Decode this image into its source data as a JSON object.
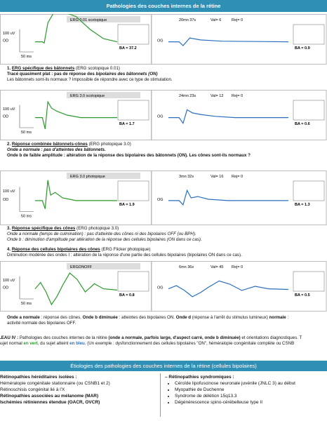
{
  "header": {
    "title": "Pathologies des couches internes de la rétine"
  },
  "panels": [
    {
      "title": "ERG 0.01 scotopique",
      "time": "20mn 37s",
      "val": "Val= 6",
      "rej": "Rej= 0",
      "amp": "100 uV",
      "dur": "50 ms",
      "eye_left": "OD",
      "eye_right": "OG",
      "ba": "BA = 37.2",
      "ba2": "BA = 0.9"
    },
    {
      "title": "ERG 3.0 scotopique",
      "time": "24mn 23s",
      "val": "Val= 12",
      "rej": "Rej= 0",
      "amp": "100 uV",
      "dur": "50 ms",
      "eye_left": "OD",
      "eye_right": "OG",
      "ba": "BA = 1.7",
      "ba2": "BA = 0.6"
    },
    {
      "title": "ERG 3.0 photopique",
      "time": "3mn 32s",
      "val": "Val= 16",
      "rej": "Rej= 0",
      "amp": "100 uV",
      "dur": "50 ms",
      "eye_left": "OD",
      "eye_right": "OG",
      "ba": "BA = 1.9",
      "ba2": "BA = 1.3"
    },
    {
      "title": "ERGONOFF",
      "time": "6mn 36s",
      "val": "Val= 45",
      "rej": "Rej= 0",
      "amp": "100 uV",
      "dur": "50 ms",
      "eye_left": "OD",
      "eye_right": "OG",
      "ba": "BA = 0.8",
      "ba2": "BA = 0.5"
    }
  ],
  "sections": [
    {
      "num": "1. ",
      "heading": "ERG spécifique des bâtonnets",
      "sub": " (ERG scotopique 0.01)",
      "lines": [
        [
          {
            "t": "Tracé quasiment plat : pas de réponse des ",
            "s": "b"
          },
          {
            "t": "bipolaires des bâtonnets (ON)",
            "s": "bi"
          }
        ],
        [
          {
            "t": "Les bâtonnets sont-ils normaux ? Impossible de répondre avec ce type de stimulation.",
            "s": "n"
          }
        ]
      ]
    },
    {
      "num": "2. ",
      "heading": "Réponse combinée bâtonnets-cônes",
      "sub": " (ERG photopique 3.0)",
      "lines": [
        [
          {
            "t": "Onde a normale : pas d'atteintes des bâtonnets.",
            "s": "bi"
          }
        ],
        [
          {
            "t": "Onde b de faible amplitude : altération de la réponse des bipolaires des bâtonnets (ON). Les cônes sont-ils normaux ?",
            "s": "b"
          }
        ]
      ]
    },
    {
      "num": "3. ",
      "heading": "Réponse spécifique des cônes",
      "sub": " (ERG photopique 3.0)",
      "lines": [
        [
          {
            "t": "Onde a normale (temps de culmination) : pas d'atteinte des cônes ni des bipolaires OFF (ou BPH).",
            "s": "i"
          }
        ],
        [
          {
            "t": "Onde b : diminution d'amplitude par altération de la réponse des cellules bipolaires (ON dans ce cas).",
            "s": "i"
          }
        ]
      ]
    },
    {
      "num": "4. ",
      "heading": "Réponse des cellules bipolaires des cônes",
      "sub": " (ERG Flicker photopique)",
      "lines": [
        [
          {
            "t": "Diminution modérée des ondes I : altération de la réponse d'une partie des cellules bipolaires (bipolaires ON dans ce cas).",
            "s": "n"
          }
        ]
      ]
    }
  ],
  "summary": [
    [
      {
        "t": "Onde a normale",
        "s": "b"
      },
      {
        "t": " : réponse des cônes. ",
        "s": "n"
      },
      {
        "t": "Onde b diminuée",
        "s": "b"
      },
      {
        "t": " : atteintes des bipolaires ON. ",
        "s": "n"
      },
      {
        "t": "Onde d",
        "s": "b"
      },
      {
        "t": " (réponse à l'arrêt du stimulus lumineux) ",
        "s": "n"
      },
      {
        "t": "normale",
        "s": "b"
      },
      {
        "t": " :",
        "s": "n"
      }
    ],
    [
      {
        "t": "activité normale des bipolaires OFF.",
        "s": "n"
      }
    ]
  ],
  "caption": [
    [
      {
        "t": "LEAU IV :",
        "s": "b"
      },
      {
        "t": " Pathologies des couches internes de la rétine ",
        "s": "n"
      },
      {
        "t": "(onde a normale, parfois large, d'aspect carré, onde b diminuée)",
        "s": "b"
      },
      {
        "t": " et orientations diagnostiques. T",
        "s": "n"
      }
    ],
    [
      {
        "t": "sujet normal ",
        "s": "n"
      },
      {
        "t": "en vert",
        "s": "g"
      },
      {
        "t": ", du sujet atteint ",
        "s": "n"
      },
      {
        "t": "en bleu",
        "s": "bl"
      },
      {
        "t": ". (Un exemple : dysfonctionnement des cellules bipolaires \"ON\", héméralopie congénitale complète ou CSNB",
        "s": "n"
      }
    ]
  ],
  "etiologies": {
    "title": "Étiologies des pathologies des couches internes de la rétine (cellules bipolaires)",
    "left": [
      {
        "t": "Rétinopathies héréditaires isolées :",
        "s": "b"
      },
      {
        "t": "Héméralopie congénitale stationnaire (ou CSNB1 et 2)",
        "s": "n"
      },
      {
        "t": "Rétinoschisis congénital lié à l'X",
        "s": "n"
      },
      {
        "t": "Rétinopathies associées au mélanome (MAR)",
        "s": "b"
      },
      {
        "t": "Ischémies rétiniennes étendue (OACR, OVCR)",
        "s": "b"
      }
    ],
    "right_title": "– Rétinopathies syndromiques :",
    "right": [
      "Céroïde lipofuscinose neuronale juvénile (JNLC 3) au début",
      "Myopathie de Duchenne",
      "Syndrome de délétion 15q13.3",
      "Dégénérescence spino-cérébelleuse type II"
    ]
  }
}
